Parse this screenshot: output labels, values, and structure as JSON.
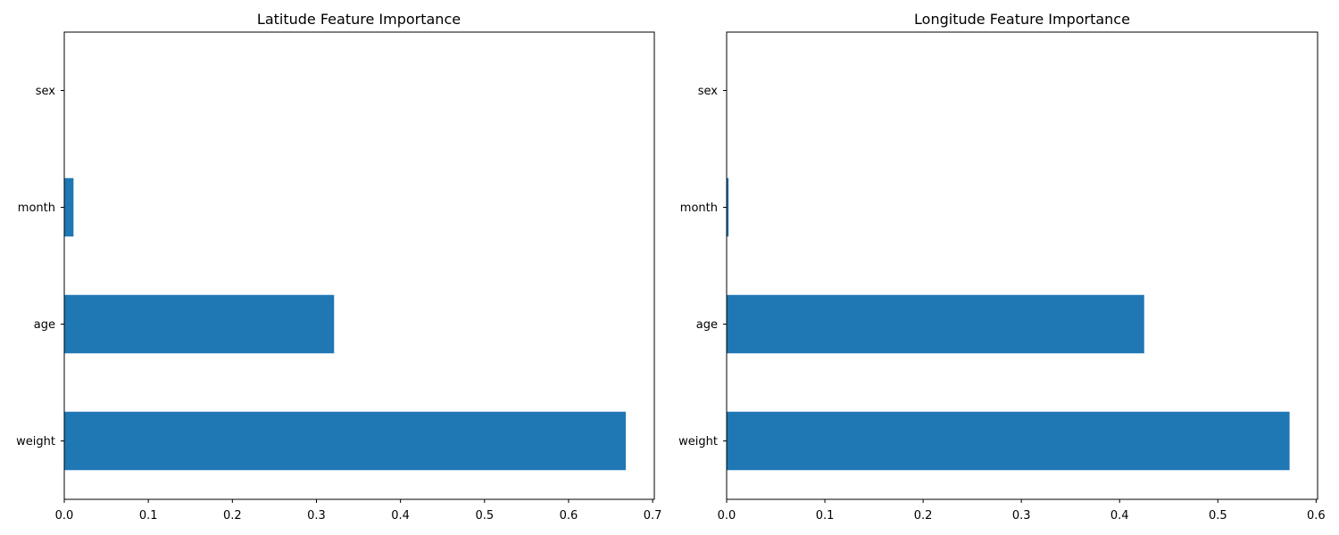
{
  "colors": {
    "bar": "#1f77b4",
    "axes": "#000000",
    "background": "#ffffff"
  },
  "chart_data": [
    {
      "type": "bar",
      "orientation": "horizontal",
      "title": "Latitude Feature Importance",
      "xlabel": "",
      "ylabel": "",
      "categories": [
        "weight",
        "age",
        "month",
        "sex"
      ],
      "values": [
        0.668,
        0.321,
        0.011,
        0.0
      ],
      "xlim": [
        0,
        0.702
      ],
      "xticks": [
        0.0,
        0.1,
        0.2,
        0.3,
        0.4,
        0.5,
        0.6,
        0.7
      ],
      "xtick_labels": [
        "0.0",
        "0.1",
        "0.2",
        "0.3",
        "0.4",
        "0.5",
        "0.6",
        "0.7"
      ],
      "grid": false,
      "legend": "none"
    },
    {
      "type": "bar",
      "orientation": "horizontal",
      "title": "Longitude Feature Importance",
      "xlabel": "",
      "ylabel": "",
      "categories": [
        "weight",
        "age",
        "month",
        "sex"
      ],
      "values": [
        0.573,
        0.425,
        0.002,
        0.0
      ],
      "xlim": [
        0,
        0.6015
      ],
      "xticks": [
        0.0,
        0.1,
        0.2,
        0.3,
        0.4,
        0.5,
        0.6
      ],
      "xtick_labels": [
        "0.0",
        "0.1",
        "0.2",
        "0.3",
        "0.4",
        "0.5",
        "0.6"
      ],
      "grid": false,
      "legend": "none"
    }
  ]
}
